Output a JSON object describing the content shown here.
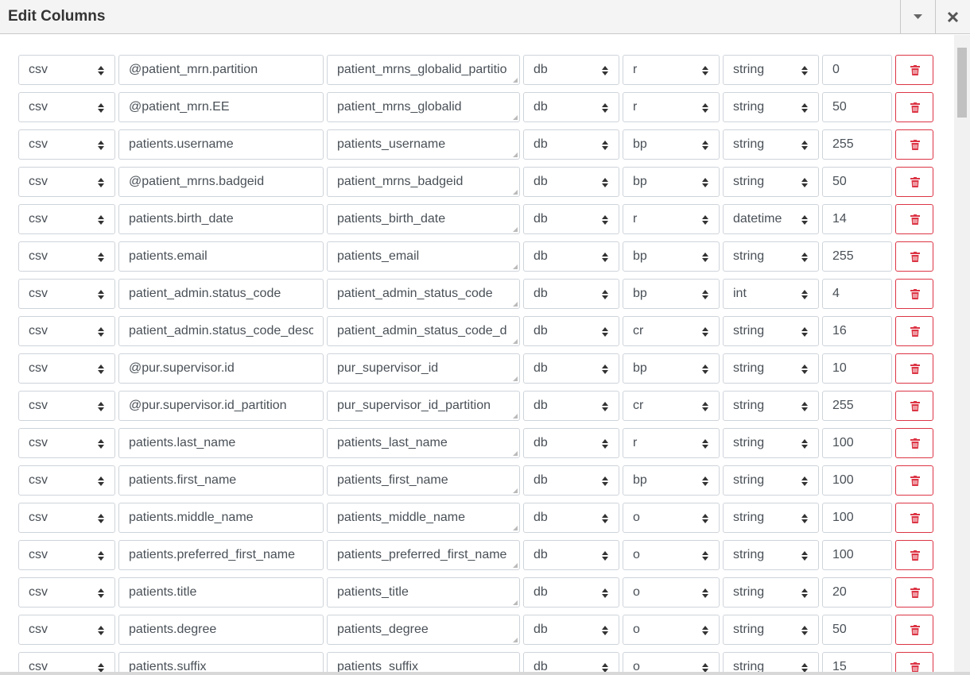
{
  "header": {
    "title": "Edit Columns"
  },
  "rows": [
    [
      "csv",
      "@patient_mrn.partition",
      "patient_mrns_globalid_partitio",
      "db",
      "r",
      "string",
      0
    ],
    [
      "csv",
      "@patient_mrn.EE",
      "patient_mrns_globalid",
      "db",
      "r",
      "string",
      50
    ],
    [
      "csv",
      "patients.username",
      "patients_username",
      "db",
      "bp",
      "string",
      255
    ],
    [
      "csv",
      "@patient_mrns.badgeid",
      "patient_mrns_badgeid",
      "db",
      "bp",
      "string",
      50
    ],
    [
      "csv",
      "patients.birth_date",
      "patients_birth_date",
      "db",
      "r",
      "datetime",
      14
    ],
    [
      "csv",
      "patients.email",
      "patients_email",
      "db",
      "bp",
      "string",
      255
    ],
    [
      "csv",
      "patient_admin.status_code",
      "patient_admin_status_code",
      "db",
      "bp",
      "int",
      4
    ],
    [
      "csv",
      "patient_admin.status_code_desc",
      "patient_admin_status_code_d",
      "db",
      "cr",
      "string",
      16
    ],
    [
      "csv",
      "@pur.supervisor.id",
      "pur_supervisor_id",
      "db",
      "bp",
      "string",
      10
    ],
    [
      "csv",
      "@pur.supervisor.id_partition",
      "pur_supervisor_id_partition",
      "db",
      "cr",
      "string",
      255
    ],
    [
      "csv",
      "patients.last_name",
      "patients_last_name",
      "db",
      "r",
      "string",
      100
    ],
    [
      "csv",
      "patients.first_name",
      "patients_first_name",
      "db",
      "bp",
      "string",
      100
    ],
    [
      "csv",
      "patients.middle_name",
      "patients_middle_name",
      "db",
      "o",
      "string",
      100
    ],
    [
      "csv",
      "patients.preferred_first_name",
      "patients_preferred_first_name",
      "db",
      "o",
      "string",
      100
    ],
    [
      "csv",
      "patients.title",
      "patients_title",
      "db",
      "o",
      "string",
      20
    ],
    [
      "csv",
      "patients.degree",
      "patients_degree",
      "db",
      "o",
      "string",
      50
    ],
    [
      "csv",
      "patients.suffix",
      "patients_suffix",
      "db",
      "o",
      "string",
      15
    ]
  ]
}
